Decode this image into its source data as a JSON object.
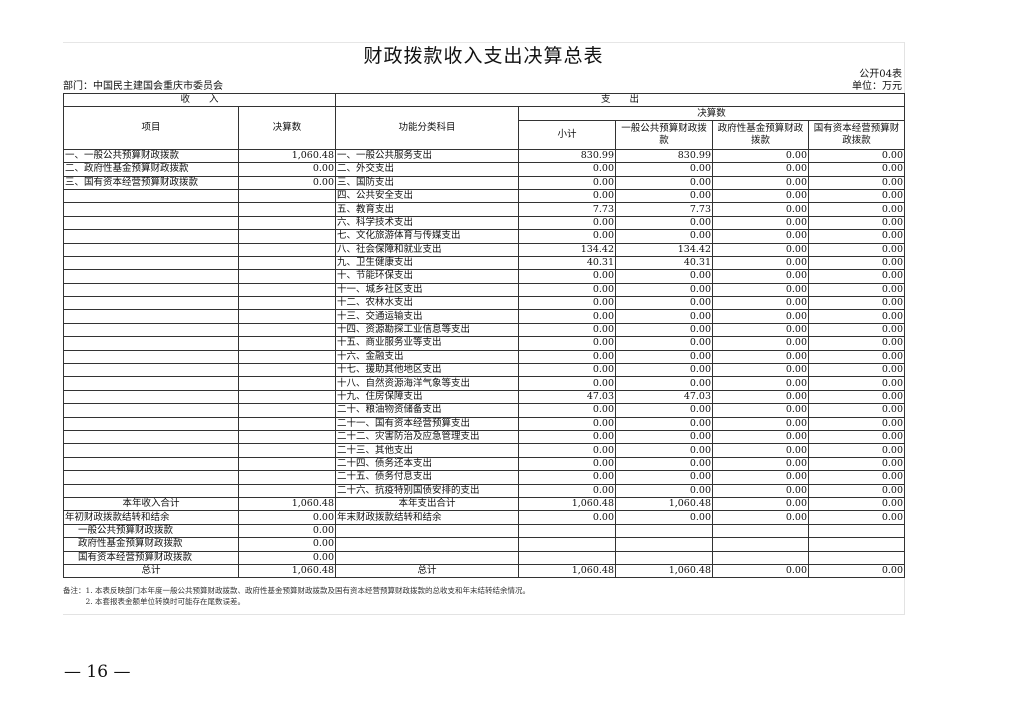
{
  "title": "财政拨款收入支出决算总表",
  "form_code": "公开04表",
  "department": "部门：中国民主建国会重庆市委员会",
  "unit": "单位：万元",
  "headers": {
    "income": "收　　入",
    "expense": "支　　出",
    "item": "项目",
    "amount": "决算数",
    "function": "功能分类科目",
    "final": "决算数",
    "subtotal": "小计",
    "general": "一般公共预算财政拨款",
    "gov_fund": "政府性基金预算财政拨款",
    "state_capital": "国有资本经营预算财政拨款"
  },
  "rows": [
    {
      "income_item": "一、一般公共预算财政拨款",
      "income_amount": "1,060.48",
      "func": "一、一般公共服务支出",
      "v": [
        "830.99",
        "830.99",
        "0.00",
        "0.00"
      ]
    },
    {
      "income_item": "二、政府性基金预算财政拨款",
      "income_amount": "0.00",
      "func": "二、外交支出",
      "v": [
        "0.00",
        "0.00",
        "0.00",
        "0.00"
      ]
    },
    {
      "income_item": "三、国有资本经营预算财政拨款",
      "income_amount": "0.00",
      "func": "三、国防支出",
      "v": [
        "0.00",
        "0.00",
        "0.00",
        "0.00"
      ]
    },
    {
      "income_item": "",
      "income_amount": "",
      "func": "四、公共安全支出",
      "v": [
        "0.00",
        "0.00",
        "0.00",
        "0.00"
      ]
    },
    {
      "income_item": "",
      "income_amount": "",
      "func": "五、教育支出",
      "v": [
        "7.73",
        "7.73",
        "0.00",
        "0.00"
      ]
    },
    {
      "income_item": "",
      "income_amount": "",
      "func": "六、科学技术支出",
      "v": [
        "0.00",
        "0.00",
        "0.00",
        "0.00"
      ]
    },
    {
      "income_item": "",
      "income_amount": "",
      "func": "七、文化旅游体育与传媒支出",
      "v": [
        "0.00",
        "0.00",
        "0.00",
        "0.00"
      ]
    },
    {
      "income_item": "",
      "income_amount": "",
      "func": "八、社会保障和就业支出",
      "v": [
        "134.42",
        "134.42",
        "0.00",
        "0.00"
      ]
    },
    {
      "income_item": "",
      "income_amount": "",
      "func": "九、卫生健康支出",
      "v": [
        "40.31",
        "40.31",
        "0.00",
        "0.00"
      ]
    },
    {
      "income_item": "",
      "income_amount": "",
      "func": "十、节能环保支出",
      "v": [
        "0.00",
        "0.00",
        "0.00",
        "0.00"
      ]
    },
    {
      "income_item": "",
      "income_amount": "",
      "func": "十一、城乡社区支出",
      "v": [
        "0.00",
        "0.00",
        "0.00",
        "0.00"
      ]
    },
    {
      "income_item": "",
      "income_amount": "",
      "func": "十二、农林水支出",
      "v": [
        "0.00",
        "0.00",
        "0.00",
        "0.00"
      ]
    },
    {
      "income_item": "",
      "income_amount": "",
      "func": "十三、交通运输支出",
      "v": [
        "0.00",
        "0.00",
        "0.00",
        "0.00"
      ]
    },
    {
      "income_item": "",
      "income_amount": "",
      "func": "十四、资源勘探工业信息等支出",
      "v": [
        "0.00",
        "0.00",
        "0.00",
        "0.00"
      ]
    },
    {
      "income_item": "",
      "income_amount": "",
      "func": "十五、商业服务业等支出",
      "v": [
        "0.00",
        "0.00",
        "0.00",
        "0.00"
      ]
    },
    {
      "income_item": "",
      "income_amount": "",
      "func": "十六、金融支出",
      "v": [
        "0.00",
        "0.00",
        "0.00",
        "0.00"
      ]
    },
    {
      "income_item": "",
      "income_amount": "",
      "func": "十七、援助其他地区支出",
      "v": [
        "0.00",
        "0.00",
        "0.00",
        "0.00"
      ]
    },
    {
      "income_item": "",
      "income_amount": "",
      "func": "十八、自然资源海洋气象等支出",
      "v": [
        "0.00",
        "0.00",
        "0.00",
        "0.00"
      ]
    },
    {
      "income_item": "",
      "income_amount": "",
      "func": "十九、住房保障支出",
      "v": [
        "47.03",
        "47.03",
        "0.00",
        "0.00"
      ]
    },
    {
      "income_item": "",
      "income_amount": "",
      "func": "二十、粮油物资储备支出",
      "v": [
        "0.00",
        "0.00",
        "0.00",
        "0.00"
      ]
    },
    {
      "income_item": "",
      "income_amount": "",
      "func": "二十一、国有资本经营预算支出",
      "v": [
        "0.00",
        "0.00",
        "0.00",
        "0.00"
      ]
    },
    {
      "income_item": "",
      "income_amount": "",
      "func": "二十二、灾害防治及应急管理支出",
      "v": [
        "0.00",
        "0.00",
        "0.00",
        "0.00"
      ]
    },
    {
      "income_item": "",
      "income_amount": "",
      "func": "二十三、其他支出",
      "v": [
        "0.00",
        "0.00",
        "0.00",
        "0.00"
      ]
    },
    {
      "income_item": "",
      "income_amount": "",
      "func": "二十四、债务还本支出",
      "v": [
        "0.00",
        "0.00",
        "0.00",
        "0.00"
      ]
    },
    {
      "income_item": "",
      "income_amount": "",
      "func": "二十五、债务付息支出",
      "v": [
        "0.00",
        "0.00",
        "0.00",
        "0.00"
      ]
    },
    {
      "income_item": "",
      "income_amount": "",
      "func": "二十六、抗疫特别国债安排的支出",
      "v": [
        "0.00",
        "0.00",
        "0.00",
        "0.00"
      ]
    }
  ],
  "summary_rows": [
    {
      "income_item": "本年收入合计",
      "income_amount": "1,060.48",
      "func": "本年支出合计",
      "v": [
        "1,060.48",
        "1,060.48",
        "0.00",
        "0.00"
      ],
      "center": true
    },
    {
      "income_item": "年初财政拨款结转和结余",
      "income_amount": "0.00",
      "func": "年末财政拨款结转和结余",
      "v": [
        "0.00",
        "0.00",
        "0.00",
        "0.00"
      ]
    },
    {
      "income_item": "一般公共预算财政拨款",
      "income_amount": "0.00",
      "func": "",
      "v": [
        "",
        "",
        "",
        ""
      ],
      "indent": true
    },
    {
      "income_item": "政府性基金预算财政拨款",
      "income_amount": "0.00",
      "func": "",
      "v": [
        "",
        "",
        "",
        ""
      ],
      "indent": true
    },
    {
      "income_item": "国有资本经营预算财政拨款",
      "income_amount": "0.00",
      "func": "",
      "v": [
        "",
        "",
        "",
        ""
      ],
      "indent": true
    },
    {
      "income_item": "总计",
      "income_amount": "1,060.48",
      "func": "总计",
      "v": [
        "1,060.48",
        "1,060.48",
        "0.00",
        "0.00"
      ],
      "center": true
    }
  ],
  "notes": [
    "备注：1. 本表反映部门本年度一般公共预算财政拨款、政府性基金预算财政拨款及国有资本经营预算财政拨款的总收支和年末结转结余情况。",
    "　　　2. 本套报表金额单位转换时可能存在尾数误差。"
  ],
  "page_number": "— 16 —"
}
